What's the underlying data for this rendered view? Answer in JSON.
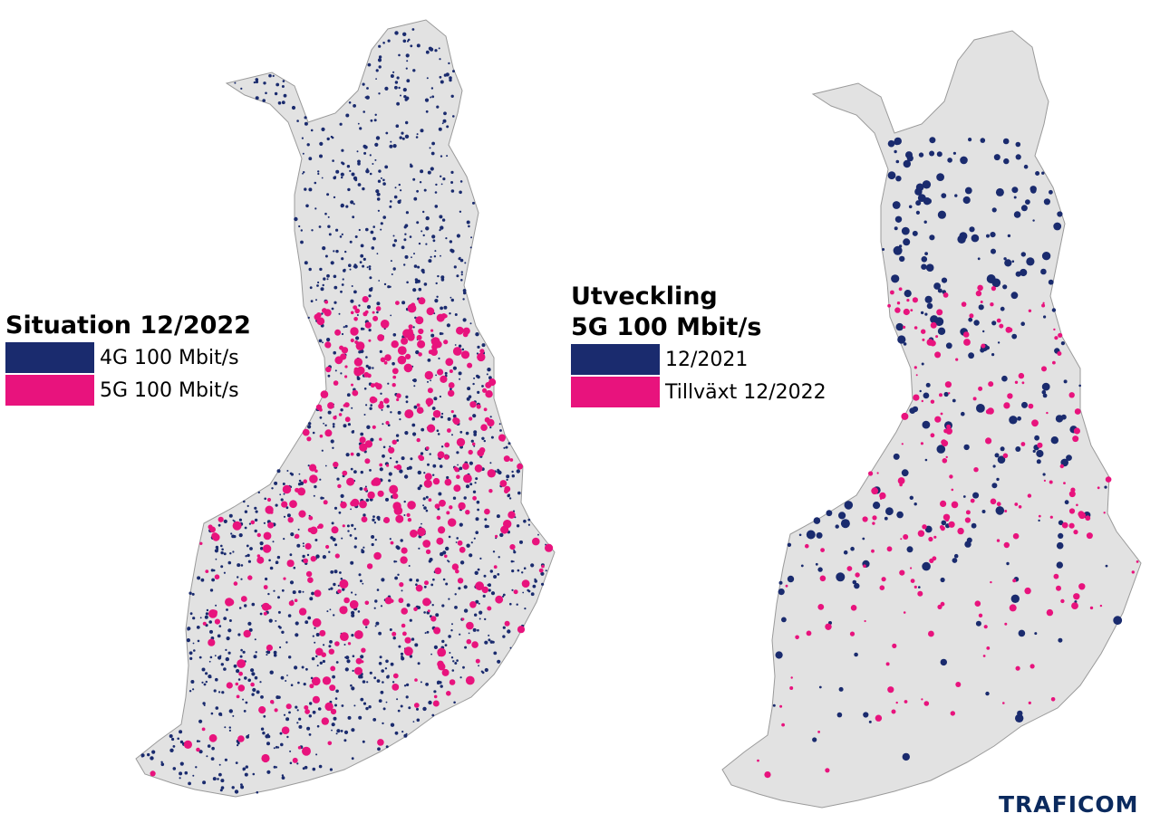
{
  "colors": {
    "land": "#e2e2e2",
    "border": "#9a9a9a",
    "navy": "#1a2b6e",
    "pink": "#e8137d",
    "brand": "#0b2a5e"
  },
  "left_map": {
    "legend_title": "Situation 12/2022",
    "legend": [
      {
        "label": "4G 100 Mbit/s",
        "color": "#1a2b6e"
      },
      {
        "label": "5G 100 Mbit/s",
        "color": "#e8137d"
      }
    ]
  },
  "right_map": {
    "legend_title_line1": "Utveckling",
    "legend_title_line2": "5G 100 Mbit/s",
    "legend": [
      {
        "label": "12/2021",
        "color": "#1a2b6e"
      },
      {
        "label": "Tillväxt 12/2022",
        "color": "#e8137d"
      }
    ]
  },
  "brand": "TRAFICOM"
}
